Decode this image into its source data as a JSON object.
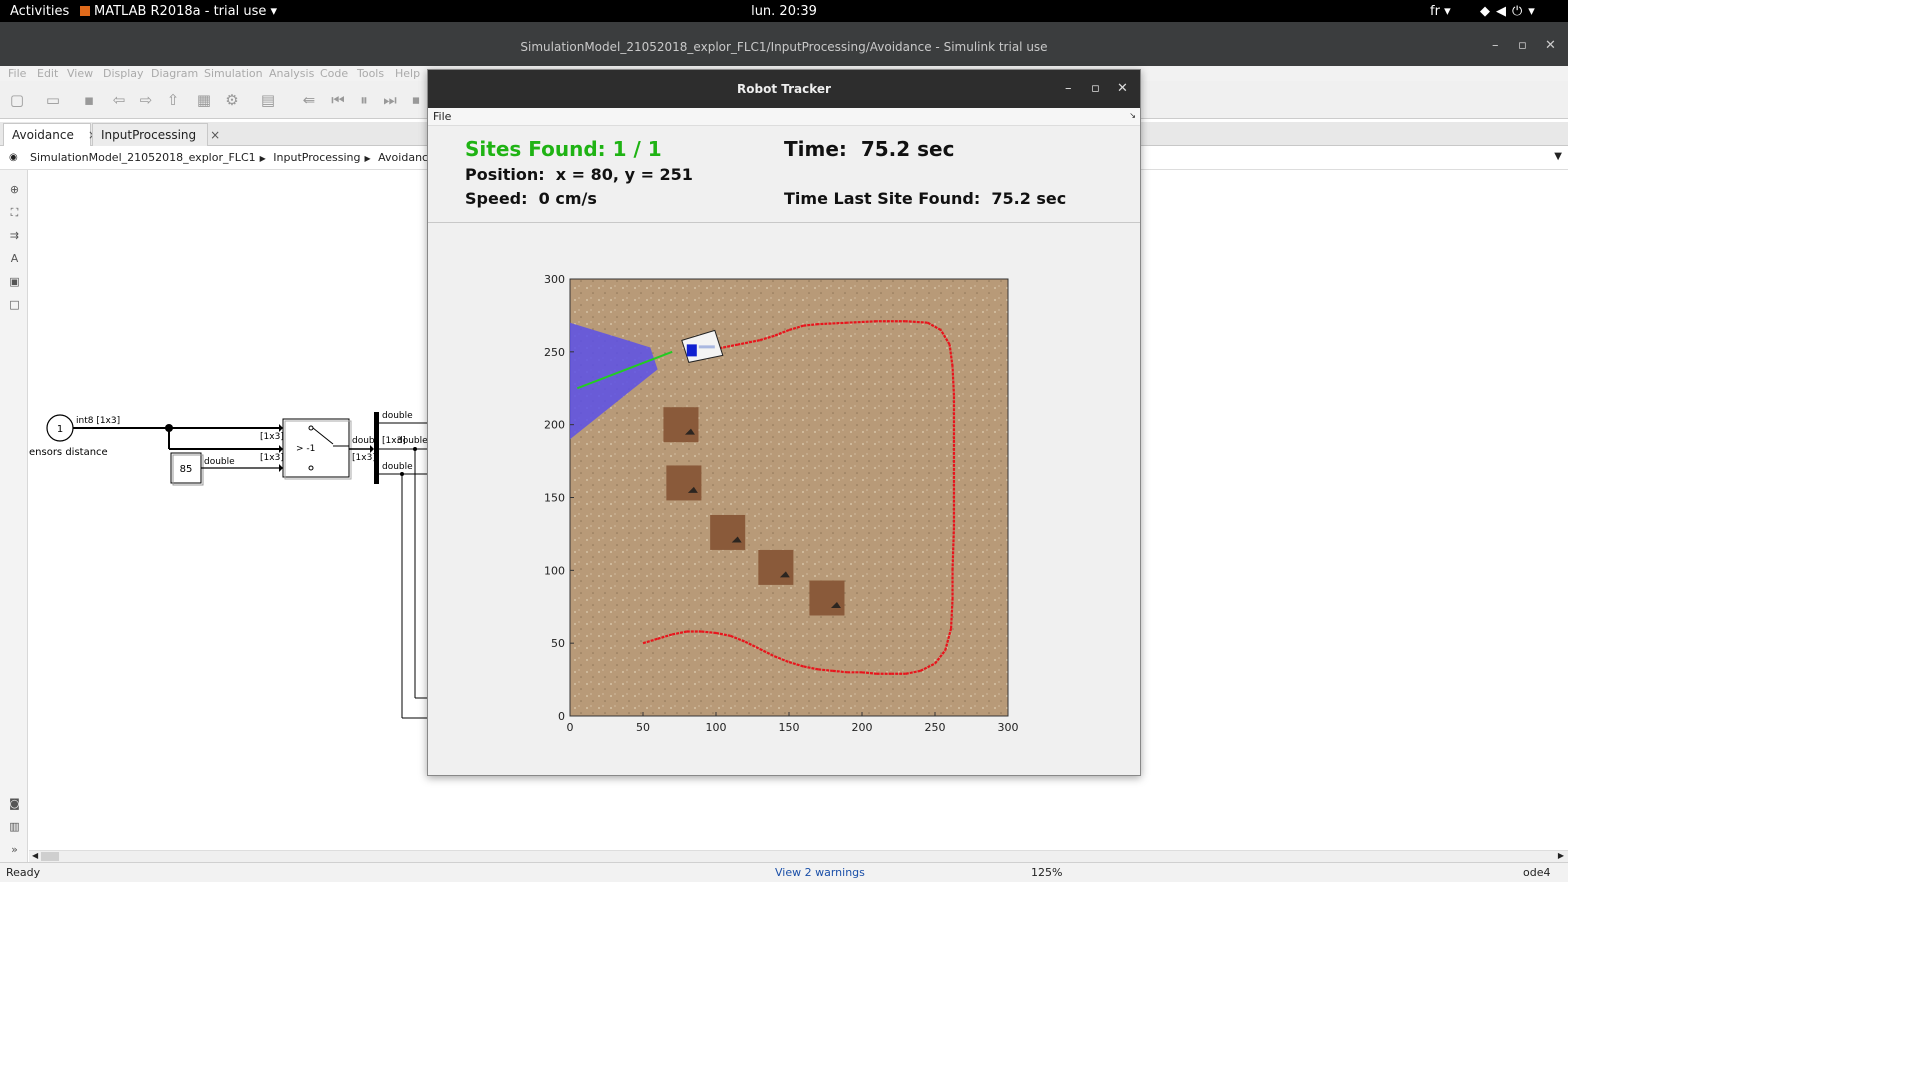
{
  "topbar": {
    "activities": "Activities",
    "app": "MATLAB R2018a - trial use",
    "clock": "lun. 20:39",
    "lang": "fr"
  },
  "simulink": {
    "title": "SimulationModel_21052018_explor_FLC1/InputProcessing/Avoidance - Simulink trial use",
    "menu": [
      "File",
      "Edit",
      "View",
      "Display",
      "Diagram",
      "Simulation",
      "Analysis",
      "Code",
      "Tools",
      "Help"
    ],
    "tabs": [
      {
        "label": "Avoidance",
        "close": "×"
      },
      {
        "label": "InputProcessing",
        "close": "×"
      }
    ],
    "breadcrumb": [
      "SimulationModel_21052018_explor_FLC1",
      "InputProcessing",
      "Avoidanc"
    ],
    "diagram": {
      "inport_number": "1",
      "inport_type": "int8 [1x3]",
      "inport_label": "ensors distance",
      "constant_value": "85",
      "constant_type": "double",
      "size_top": "[1x3]",
      "size_bottom": "[1x3]",
      "switch_label": "> -1",
      "switch_out": "doub",
      "switch_out_size": "[1x3]",
      "bus_out_1": "double",
      "bus_out_2": "[1x3]",
      "bus_out_2_type": "double",
      "bus_out_3": "double"
    },
    "status": {
      "ready": "Ready",
      "warnings": "View 2 warnings",
      "zoom": "125%",
      "solver": "ode4"
    }
  },
  "robot_tracker": {
    "title": "Robot Tracker",
    "menu_file": "File",
    "sites_found": "Sites Found: 1 / 1",
    "time": "Time:  75.2 sec",
    "position": "Position:  x = 80, y = 251",
    "speed": "Speed:  0 cm/s",
    "time_last_site": "Time Last Site Found:  75.2 sec",
    "colors": {
      "sites_text": "#1fb314",
      "path": "#e8141c",
      "sensor_cone": "#5a50e8",
      "sensor_ray": "#22cc22",
      "ground": "#b89a78"
    }
  },
  "chart_data": {
    "type": "scatter",
    "title": "",
    "xlabel": "",
    "ylabel": "",
    "xlim": [
      0,
      300
    ],
    "ylim": [
      0,
      300
    ],
    "xticks": [
      0,
      50,
      100,
      150,
      200,
      250,
      300
    ],
    "yticks": [
      0,
      50,
      100,
      150,
      200,
      250,
      300
    ],
    "path": [
      [
        50,
        50
      ],
      [
        60,
        53
      ],
      [
        70,
        56
      ],
      [
        80,
        58
      ],
      [
        90,
        58
      ],
      [
        100,
        57
      ],
      [
        110,
        55
      ],
      [
        120,
        51
      ],
      [
        130,
        46
      ],
      [
        140,
        41
      ],
      [
        150,
        37
      ],
      [
        160,
        34
      ],
      [
        170,
        32
      ],
      [
        180,
        31
      ],
      [
        190,
        30
      ],
      [
        200,
        30
      ],
      [
        210,
        29
      ],
      [
        220,
        29
      ],
      [
        230,
        29
      ],
      [
        240,
        31
      ],
      [
        250,
        36
      ],
      [
        257,
        45
      ],
      [
        261,
        60
      ],
      [
        262,
        80
      ],
      [
        262,
        100
      ],
      [
        263,
        130
      ],
      [
        263,
        160
      ],
      [
        263,
        190
      ],
      [
        263,
        220
      ],
      [
        262,
        240
      ],
      [
        260,
        255
      ],
      [
        254,
        265
      ],
      [
        245,
        270
      ],
      [
        230,
        271
      ],
      [
        210,
        271
      ],
      [
        190,
        270
      ],
      [
        170,
        269
      ],
      [
        160,
        268
      ],
      [
        150,
        265
      ],
      [
        140,
        261
      ],
      [
        130,
        258
      ],
      [
        115,
        255
      ],
      [
        100,
        252
      ],
      [
        90,
        251
      ],
      [
        80,
        251
      ]
    ],
    "robot": {
      "x": 80,
      "y": 251
    },
    "sites": [
      [
        76,
        200
      ],
      [
        78,
        160
      ],
      [
        108,
        126
      ],
      [
        141,
        102
      ],
      [
        176,
        81
      ]
    ],
    "sensor_ray": [
      [
        5,
        225
      ],
      [
        70,
        250
      ]
    ]
  }
}
